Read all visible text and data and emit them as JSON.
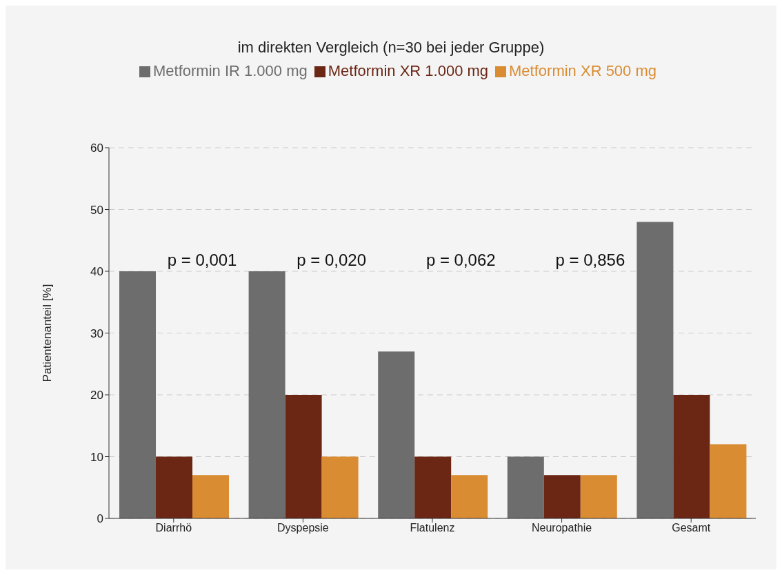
{
  "chart_data": {
    "type": "bar",
    "title": "im direkten Vergleich (n=30 bei jeder Gruppe)",
    "ylabel": "Patientenanteil [%]",
    "categories": [
      "Diarrhö",
      "Dyspepsie",
      "Flatulenz",
      "Neuropathie",
      "Gesamt"
    ],
    "series": [
      {
        "name": "Metformin IR 1.000 mg",
        "color": "#6d6d6d",
        "values": [
          40,
          40,
          27,
          10,
          48
        ]
      },
      {
        "name": "Metformin XR 1.000 mg",
        "color": "#6b2614",
        "values": [
          10,
          20,
          10,
          7,
          20
        ]
      },
      {
        "name": "Metformin XR 500 mg",
        "color": "#d98c32",
        "values": [
          7,
          10,
          7,
          7,
          12
        ]
      }
    ],
    "ylim": [
      0,
      60
    ],
    "yticks": [
      0,
      10,
      20,
      30,
      40,
      50,
      60
    ],
    "grid": "y",
    "legend": "top",
    "annotations": [
      "p = 0,001",
      "p = 0,020",
      "p = 0,062",
      "p = 0,856"
    ]
  }
}
